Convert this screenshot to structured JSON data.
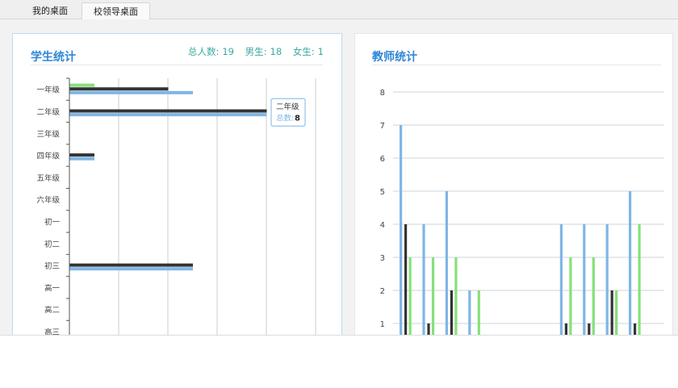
{
  "tabs": [
    {
      "label": "我的桌面",
      "active": false
    },
    {
      "label": "校领导桌面",
      "active": true
    }
  ],
  "student_panel": {
    "title": "学生统计",
    "stats": {
      "total_label": "总人数:",
      "total_value": "19",
      "male_label": "男生:",
      "male_value": "18",
      "female_label": "女生:",
      "female_value": "1"
    },
    "tooltip": {
      "category": "二年级",
      "series_label": "总数:",
      "value": "8"
    }
  },
  "teacher_panel": {
    "title": "教师统计"
  },
  "colors": {
    "blue": "#7fb6e6",
    "dark": "#333333",
    "green": "#86e07a",
    "accent": "#2f86d6"
  },
  "chart_data": [
    {
      "type": "bar",
      "orientation": "horizontal",
      "categories": [
        "一年级",
        "二年级",
        "三年级",
        "四年级",
        "五年级",
        "六年级",
        "初一",
        "初二",
        "初三",
        "高一",
        "高二",
        "高三"
      ],
      "xlim": [
        0,
        10
      ],
      "grid": true,
      "series": [
        {
          "color": "#86e07a",
          "values": [
            1,
            0,
            0,
            0,
            0,
            0,
            0,
            0,
            0,
            0,
            0,
            0
          ]
        },
        {
          "color": "#333333",
          "values": [
            4,
            8,
            0,
            1,
            0,
            0,
            0,
            0,
            5,
            0,
            0,
            0
          ]
        },
        {
          "color": "#7fb6e6",
          "values": [
            5,
            8,
            0,
            1,
            0,
            0,
            0,
            0,
            5,
            0,
            0,
            0
          ]
        }
      ]
    },
    {
      "type": "bar",
      "orientation": "vertical",
      "ylim": [
        0,
        8
      ],
      "yticks": [
        1,
        2,
        3,
        4,
        5,
        6,
        7,
        8
      ],
      "grid": true,
      "groups": [
        {
          "blue": 7,
          "dark": 4,
          "green": 3
        },
        {
          "blue": 4,
          "dark": 1,
          "green": 3
        },
        {
          "blue": 5,
          "dark": 2,
          "green": 3
        },
        {
          "blue": 2,
          "dark": 0,
          "green": 2
        },
        {
          "blue": 0,
          "dark": 0,
          "green": 0
        },
        {
          "blue": 0,
          "dark": 0,
          "green": 0
        },
        {
          "blue": 0,
          "dark": 0,
          "green": 0
        },
        {
          "blue": 4,
          "dark": 1,
          "green": 3
        },
        {
          "blue": 4,
          "dark": 1,
          "green": 3
        },
        {
          "blue": 4,
          "dark": 2,
          "green": 2
        },
        {
          "blue": 5,
          "dark": 1,
          "green": 4
        }
      ]
    }
  ]
}
